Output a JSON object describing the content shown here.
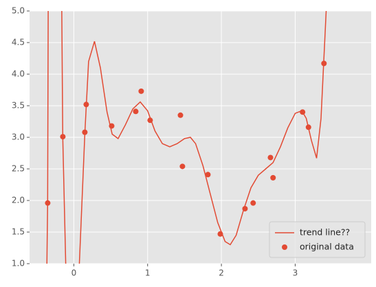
{
  "chart_data": {
    "type": "line",
    "legend": "lower right",
    "grid": true,
    "xlim": [
      -0.6,
      4.03
    ],
    "ylim": [
      1.0,
      5.0
    ],
    "xticks": [
      0,
      1,
      2,
      3
    ],
    "yticks": [
      {
        "value": 1.0,
        "label": "1.0"
      },
      {
        "value": 1.5,
        "label": "1.5"
      },
      {
        "value": 2.0,
        "label": "2.0"
      },
      {
        "value": 2.5,
        "label": "2.5"
      },
      {
        "value": 3.0,
        "label": "3.0"
      },
      {
        "value": 3.5,
        "label": "3.5"
      },
      {
        "value": 4.0,
        "label": "4.0"
      },
      {
        "value": 4.5,
        "label": "4.5"
      },
      {
        "value": 5.0,
        "label": "5.0"
      }
    ],
    "series": [
      {
        "name": "trend line??",
        "type": "line",
        "color": "#E24A33",
        "x": [
          -0.37,
          -0.355,
          -0.345,
          -0.17,
          -0.15,
          -0.11,
          -0.1,
          0.06,
          0.075,
          0.15,
          0.2,
          0.28,
          0.36,
          0.45,
          0.52,
          0.6,
          0.7,
          0.8,
          0.9,
          1.0,
          1.1,
          1.2,
          1.3,
          1.4,
          1.5,
          1.58,
          1.65,
          1.75,
          1.85,
          1.95,
          2.05,
          2.12,
          2.2,
          2.3,
          2.4,
          2.5,
          2.6,
          2.7,
          2.8,
          2.9,
          3.0,
          3.09,
          3.15,
          3.22,
          3.29,
          3.35,
          3.42,
          3.45
        ],
        "values": [
          0.5,
          1.96,
          6,
          6,
          3.0,
          1.0,
          0.5,
          0.5,
          1.0,
          3.08,
          4.2,
          4.52,
          4.1,
          3.4,
          3.05,
          2.98,
          3.2,
          3.45,
          3.56,
          3.42,
          3.1,
          2.9,
          2.85,
          2.9,
          2.98,
          3.0,
          2.9,
          2.55,
          2.1,
          1.65,
          1.35,
          1.3,
          1.45,
          1.85,
          2.2,
          2.4,
          2.5,
          2.6,
          2.85,
          3.15,
          3.38,
          3.42,
          3.3,
          2.95,
          2.67,
          3.3,
          5.0,
          6
        ]
      },
      {
        "name": "original data",
        "type": "scatter",
        "color": "#E24A33",
        "x": [
          -0.354,
          -0.149,
          0.149,
          0.168,
          0.513,
          0.839,
          0.913,
          1.034,
          1.445,
          1.472,
          1.817,
          1.985,
          2.32,
          2.43,
          2.665,
          2.7,
          3.1,
          3.18,
          3.39
        ],
        "values": [
          1.96,
          3.01,
          3.08,
          3.52,
          3.18,
          3.41,
          3.73,
          3.27,
          3.35,
          2.54,
          2.41,
          1.47,
          1.87,
          1.96,
          2.68,
          2.36,
          3.4,
          3.16,
          4.17
        ]
      }
    ]
  }
}
